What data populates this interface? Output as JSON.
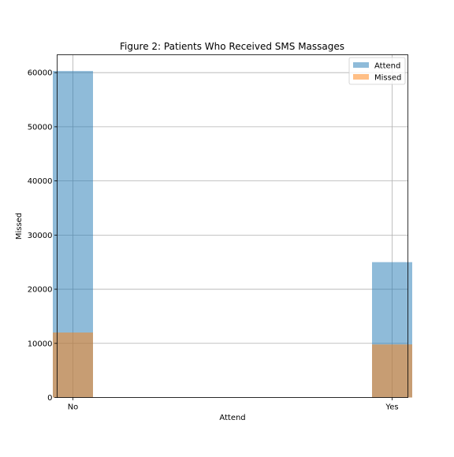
{
  "chart_data": {
    "type": "bar",
    "title": "Figure 2: Patients Who Received SMS Massages",
    "xlabel": "Attend",
    "ylabel": "Missed",
    "categories": [
      "No",
      "Yes"
    ],
    "series": [
      {
        "name": "Attend",
        "values": [
          60300,
          25000
        ],
        "color": "#1f77b4",
        "opacity": 0.5
      },
      {
        "name": "Missed",
        "values": [
          12000,
          9800
        ],
        "color": "#ff7f0e",
        "opacity": 0.5
      }
    ],
    "ylim": [
      0,
      63300
    ],
    "yticks": [
      0,
      10000,
      20000,
      30000,
      40000,
      50000,
      60000
    ],
    "ytick_labels": [
      "0",
      "10000",
      "20000",
      "30000",
      "40000",
      "50000",
      "60000"
    ],
    "grid": true,
    "legend_position": "top-right",
    "overlaid": true
  }
}
